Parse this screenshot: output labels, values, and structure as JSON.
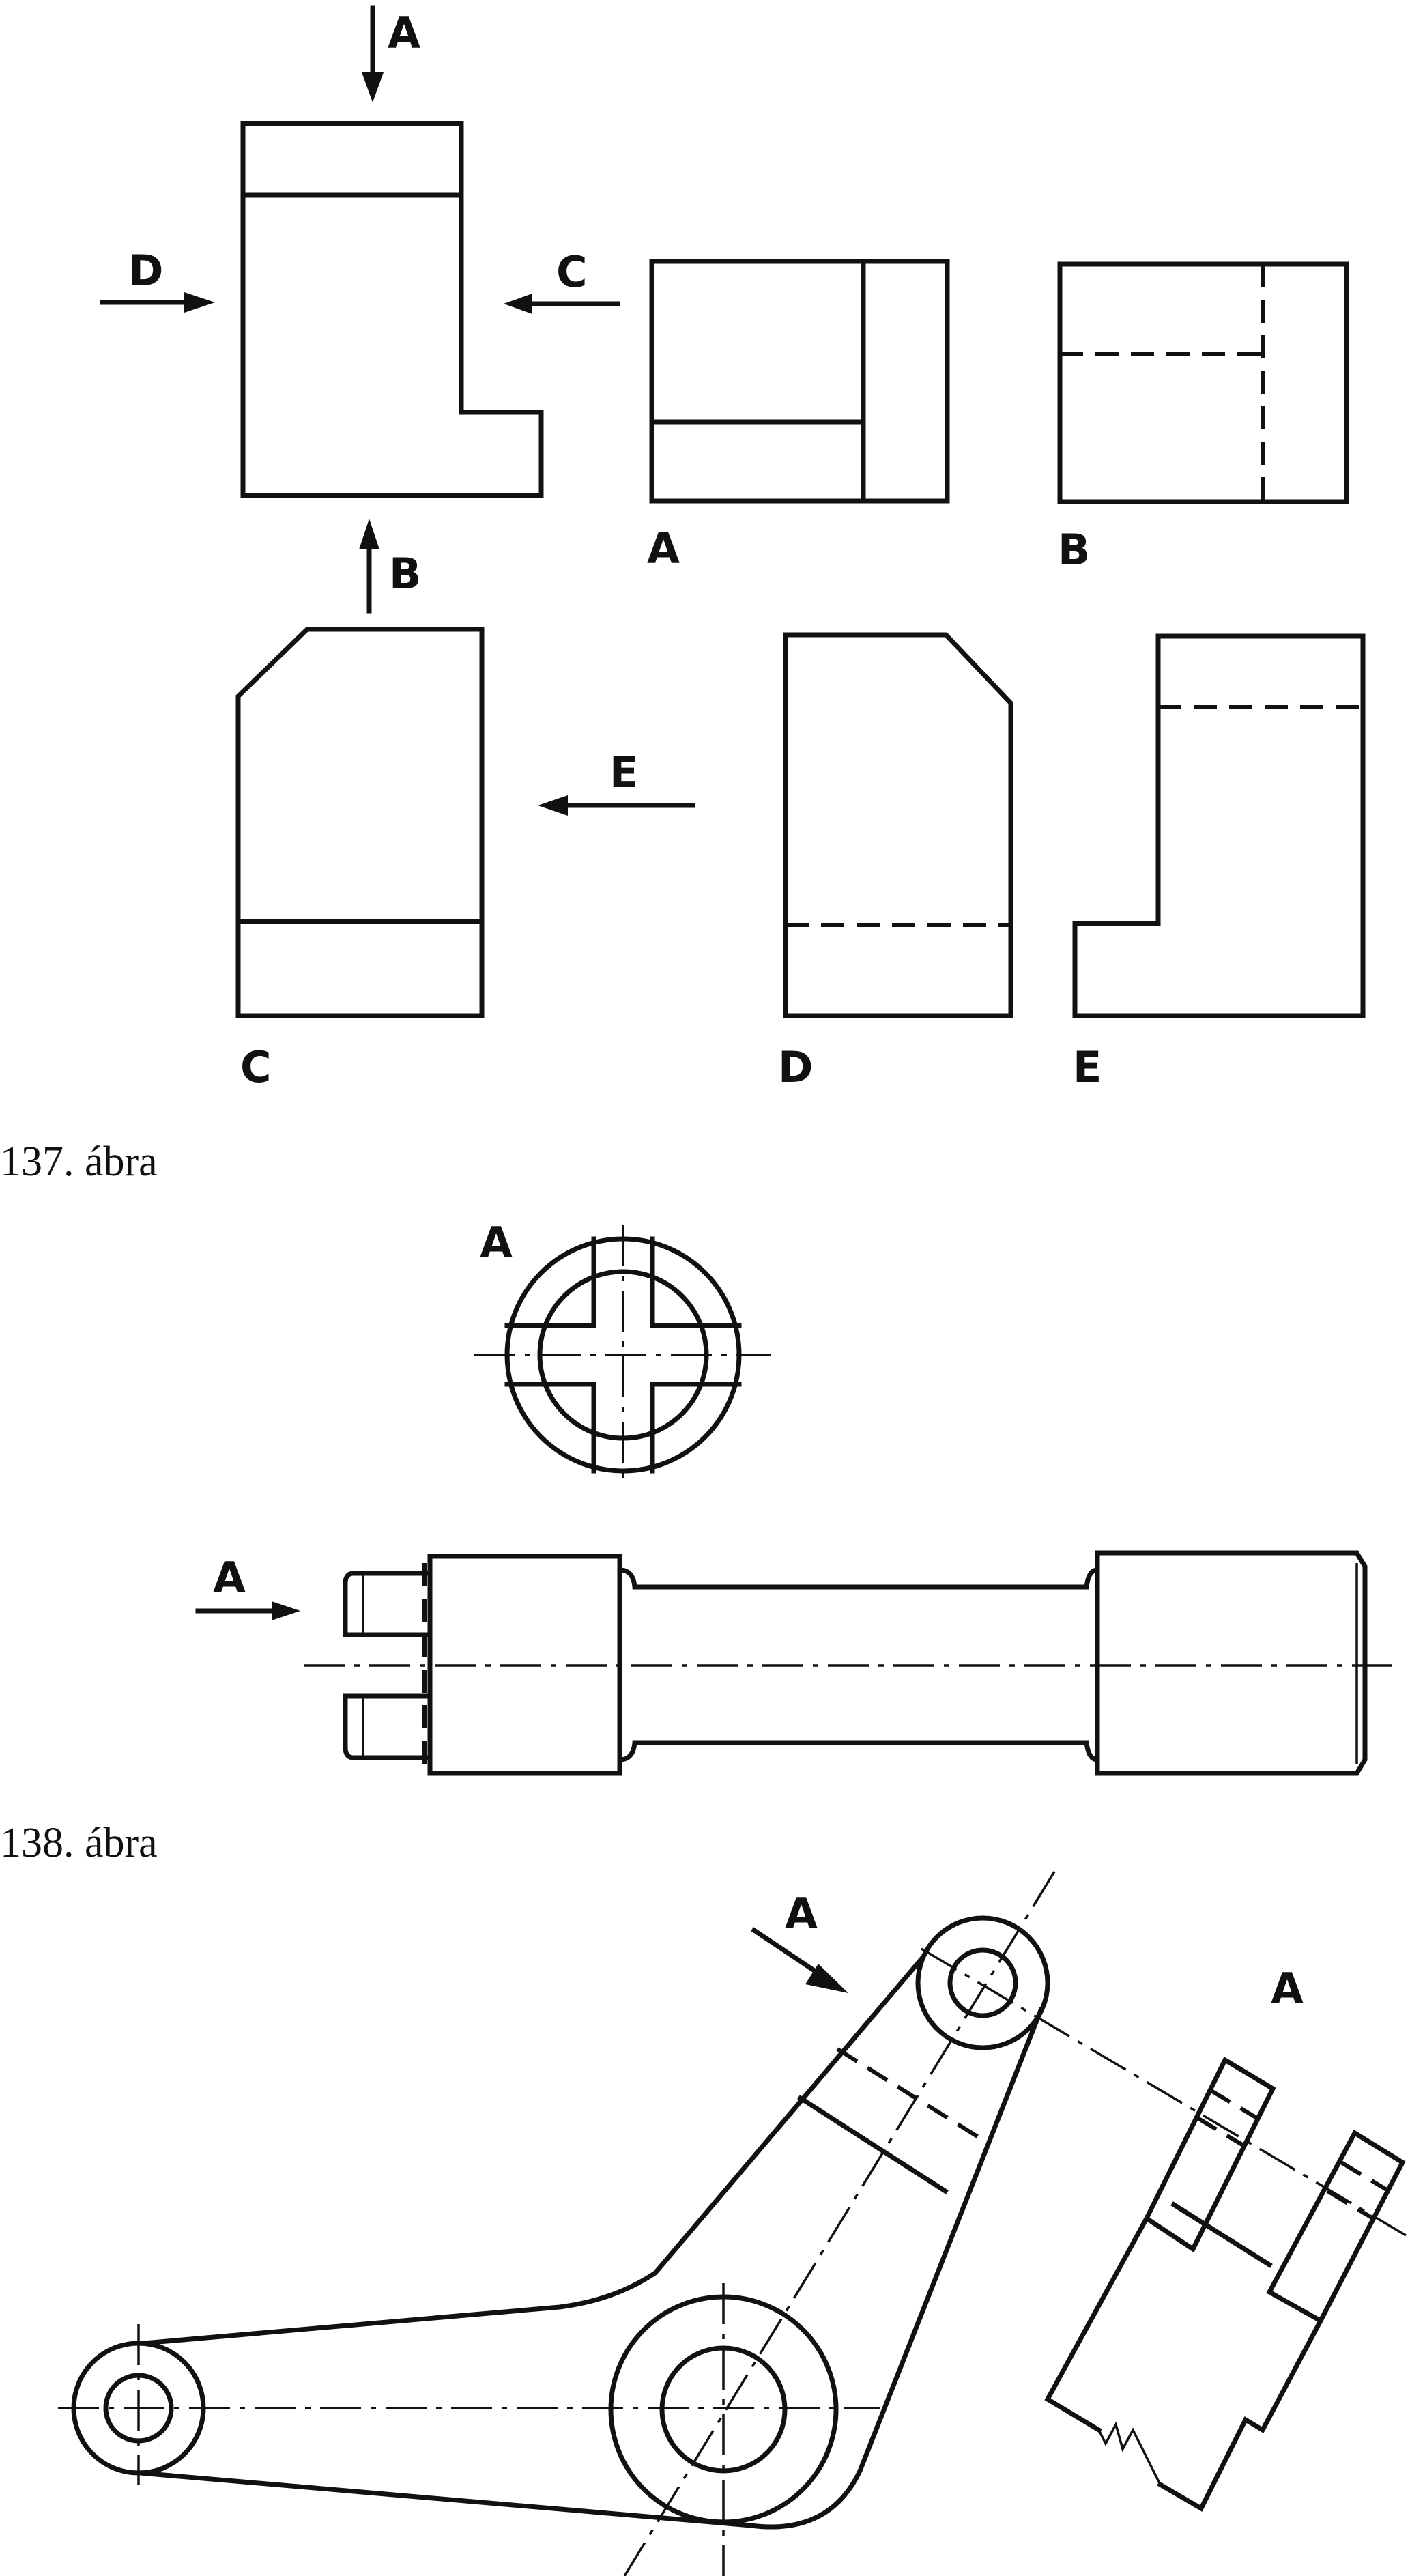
{
  "figure_137": {
    "caption": "137. ábra",
    "view_labels": {
      "a": "A",
      "b": "B",
      "c": "C",
      "d": "D",
      "e": "E"
    },
    "candidate_labels": {
      "a": "A",
      "b": "B",
      "c": "C",
      "d": "D",
      "e": "E"
    }
  },
  "figure_138": {
    "caption": "138. ábra",
    "end_view_label": "A",
    "arrow_label": "A"
  },
  "figure_139": {
    "arrow_label": "A",
    "view_label": "A"
  }
}
